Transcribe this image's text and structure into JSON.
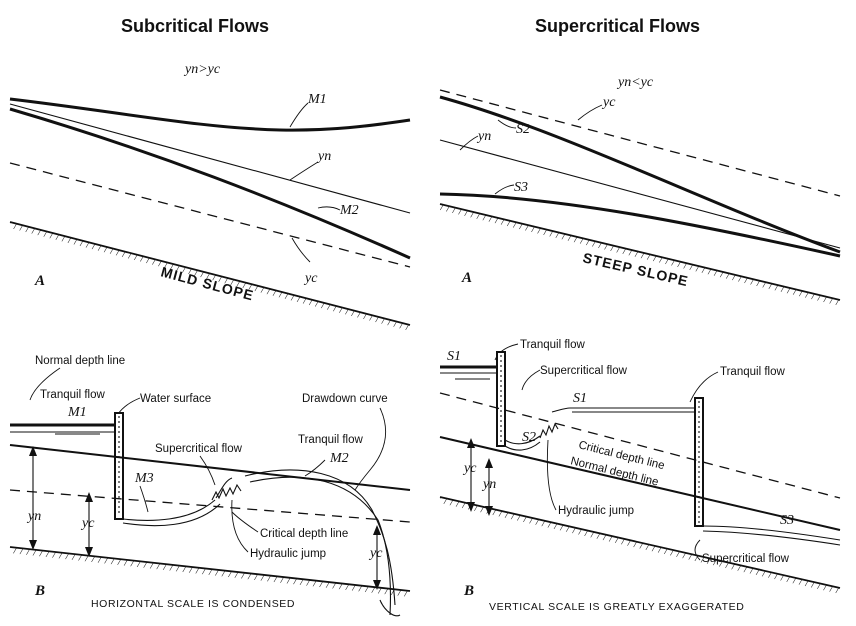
{
  "titles": {
    "left": "Subcritical Flows",
    "right": "Supercritical Flows"
  },
  "panel_top_left": {
    "condition": "yn>yc",
    "curve_label": "M1",
    "normal_label": "yn",
    "curve2_label": "M2",
    "critical_label": "yc",
    "letter": "A",
    "slope_label": "MILD SLOPE"
  },
  "panel_top_right": {
    "condition": "yn<yc",
    "critical_label": "yc",
    "curve_label": "S2",
    "normal_label": "yn",
    "curve2_label": "S3",
    "letter": "A",
    "slope_label": "STEEP SLOPE"
  },
  "panel_bottom_left": {
    "normal_depth_line": "Normal depth line",
    "tranquil_flow": "Tranquil flow",
    "water_surface": "Water surface",
    "m1": "M1",
    "drawdown_curve": "Drawdown curve",
    "supercritical_flow": "Supercritical flow",
    "tranquil_flow_2": "Tranquil flow",
    "m2": "M2",
    "m3": "M3",
    "yn": "yn",
    "yc": "yc",
    "critical_depth_line": "Critical depth line",
    "hydraulic_jump": "Hydraulic jump",
    "yc_right": "yc",
    "letter": "B",
    "caption": "HORIZONTAL SCALE IS CONDENSED"
  },
  "panel_bottom_right": {
    "s1_left": "S1",
    "tranquil_flow": "Tranquil flow",
    "supercritical_flow": "Supercritical flow",
    "tranquil_flow_right": "Tranquil flow",
    "s1": "S1",
    "s2": "S2",
    "critical_depth_line": "Critical depth line",
    "normal_depth_line": "Normal depth line",
    "yc": "yc",
    "yn": "yn",
    "hydraulic_jump": "Hydraulic jump",
    "s3": "S3",
    "supercritical_flow_2": "Supercritical flow",
    "letter": "B",
    "caption": "VERTICAL SCALE IS GREATLY EXAGGERATED"
  }
}
